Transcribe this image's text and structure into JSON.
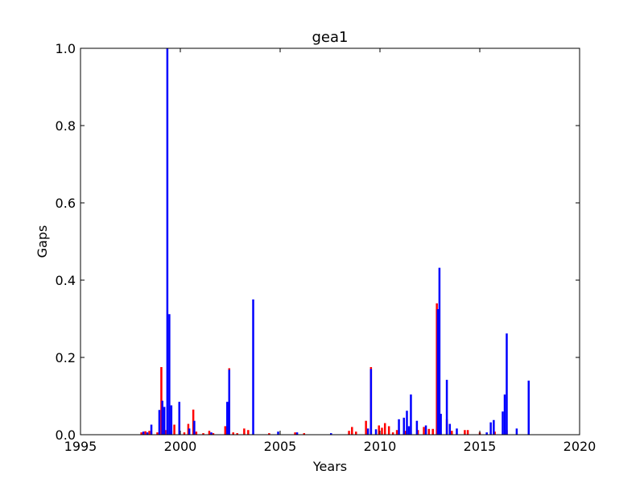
{
  "chart_data": {
    "type": "bar",
    "title": "gea1",
    "xlabel": "Years",
    "ylabel": "Gaps",
    "xlim": [
      1995,
      2020
    ],
    "ylim": [
      0,
      1
    ],
    "xticks": [
      1995,
      2000,
      2005,
      2010,
      2015,
      2020
    ],
    "xtick_labels": [
      "1995",
      "2000",
      "2005",
      "2010",
      "2015",
      "2020"
    ],
    "yticks": [
      0,
      0.2,
      0.4,
      0.6,
      0.8,
      1.0
    ],
    "ytick_labels": [
      "0.0",
      "0.2",
      "0.4",
      "0.6",
      "0.8",
      "1.0"
    ],
    "grid": false,
    "series": [
      {
        "color": "#ff0000",
        "points": [
          [
            1998.05,
            0.006
          ],
          [
            1998.25,
            0.009
          ],
          [
            1998.45,
            0.01
          ],
          [
            1998.85,
            0.006
          ],
          [
            1999.05,
            0.175
          ],
          [
            1999.25,
            0.012
          ],
          [
            1999.55,
            0.01
          ],
          [
            1999.7,
            0.026
          ],
          [
            2000.2,
            0.006
          ],
          [
            2000.4,
            0.028
          ],
          [
            2000.65,
            0.065
          ],
          [
            2000.8,
            0.008
          ],
          [
            2001.15,
            0.004
          ],
          [
            2001.45,
            0.01
          ],
          [
            2001.65,
            0.004
          ],
          [
            2002.25,
            0.022
          ],
          [
            2002.45,
            0.172
          ],
          [
            2002.65,
            0.006
          ],
          [
            2002.85,
            0.004
          ],
          [
            2003.2,
            0.016
          ],
          [
            2003.4,
            0.012
          ],
          [
            2004.45,
            0.004
          ],
          [
            2005.75,
            0.006
          ],
          [
            2006.2,
            0.004
          ],
          [
            2008.45,
            0.01
          ],
          [
            2008.6,
            0.02
          ],
          [
            2008.8,
            0.008
          ],
          [
            2009.3,
            0.036
          ],
          [
            2009.55,
            0.175
          ],
          [
            2009.95,
            0.024
          ],
          [
            2010.1,
            0.018
          ],
          [
            2010.25,
            0.03
          ],
          [
            2010.45,
            0.022
          ],
          [
            2010.65,
            0.006
          ],
          [
            2010.85,
            0.012
          ],
          [
            2011.3,
            0.01
          ],
          [
            2011.9,
            0.012
          ],
          [
            2012.2,
            0.02
          ],
          [
            2012.45,
            0.015
          ],
          [
            2012.65,
            0.015
          ],
          [
            2012.85,
            0.34
          ],
          [
            2013.35,
            0.04
          ],
          [
            2013.6,
            0.01
          ],
          [
            2014.25,
            0.012
          ],
          [
            2014.4,
            0.012
          ],
          [
            2015.0,
            0.006
          ],
          [
            2015.75,
            0.008
          ],
          [
            2016.35,
            0.012
          ]
        ]
      },
      {
        "color": "#0000ff",
        "points": [
          [
            1998.15,
            0.008
          ],
          [
            1998.35,
            0.006
          ],
          [
            1998.55,
            0.026
          ],
          [
            1998.95,
            0.064
          ],
          [
            1999.1,
            0.088
          ],
          [
            1999.2,
            0.072
          ],
          [
            1999.35,
            1.0
          ],
          [
            1999.45,
            0.312
          ],
          [
            1999.55,
            0.076
          ],
          [
            1999.95,
            0.085
          ],
          [
            2000.45,
            0.016
          ],
          [
            2000.7,
            0.036
          ],
          [
            2001.55,
            0.006
          ],
          [
            2002.35,
            0.085
          ],
          [
            2002.45,
            0.168
          ],
          [
            2003.65,
            0.35
          ],
          [
            2004.9,
            0.008
          ],
          [
            2005.85,
            0.006
          ],
          [
            2007.55,
            0.004
          ],
          [
            2009.4,
            0.016
          ],
          [
            2009.55,
            0.17
          ],
          [
            2009.8,
            0.014
          ],
          [
            2010.95,
            0.04
          ],
          [
            2011.2,
            0.044
          ],
          [
            2011.35,
            0.062
          ],
          [
            2011.45,
            0.022
          ],
          [
            2011.55,
            0.104
          ],
          [
            2011.85,
            0.036
          ],
          [
            2012.3,
            0.024
          ],
          [
            2012.9,
            0.325
          ],
          [
            2012.98,
            0.432
          ],
          [
            2013.05,
            0.054
          ],
          [
            2013.35,
            0.142
          ],
          [
            2013.5,
            0.028
          ],
          [
            2013.85,
            0.016
          ],
          [
            2015.35,
            0.006
          ],
          [
            2015.55,
            0.032
          ],
          [
            2015.7,
            0.038
          ],
          [
            2016.15,
            0.06
          ],
          [
            2016.25,
            0.104
          ],
          [
            2016.35,
            0.262
          ],
          [
            2016.85,
            0.016
          ],
          [
            2017.45,
            0.14
          ]
        ]
      }
    ]
  }
}
